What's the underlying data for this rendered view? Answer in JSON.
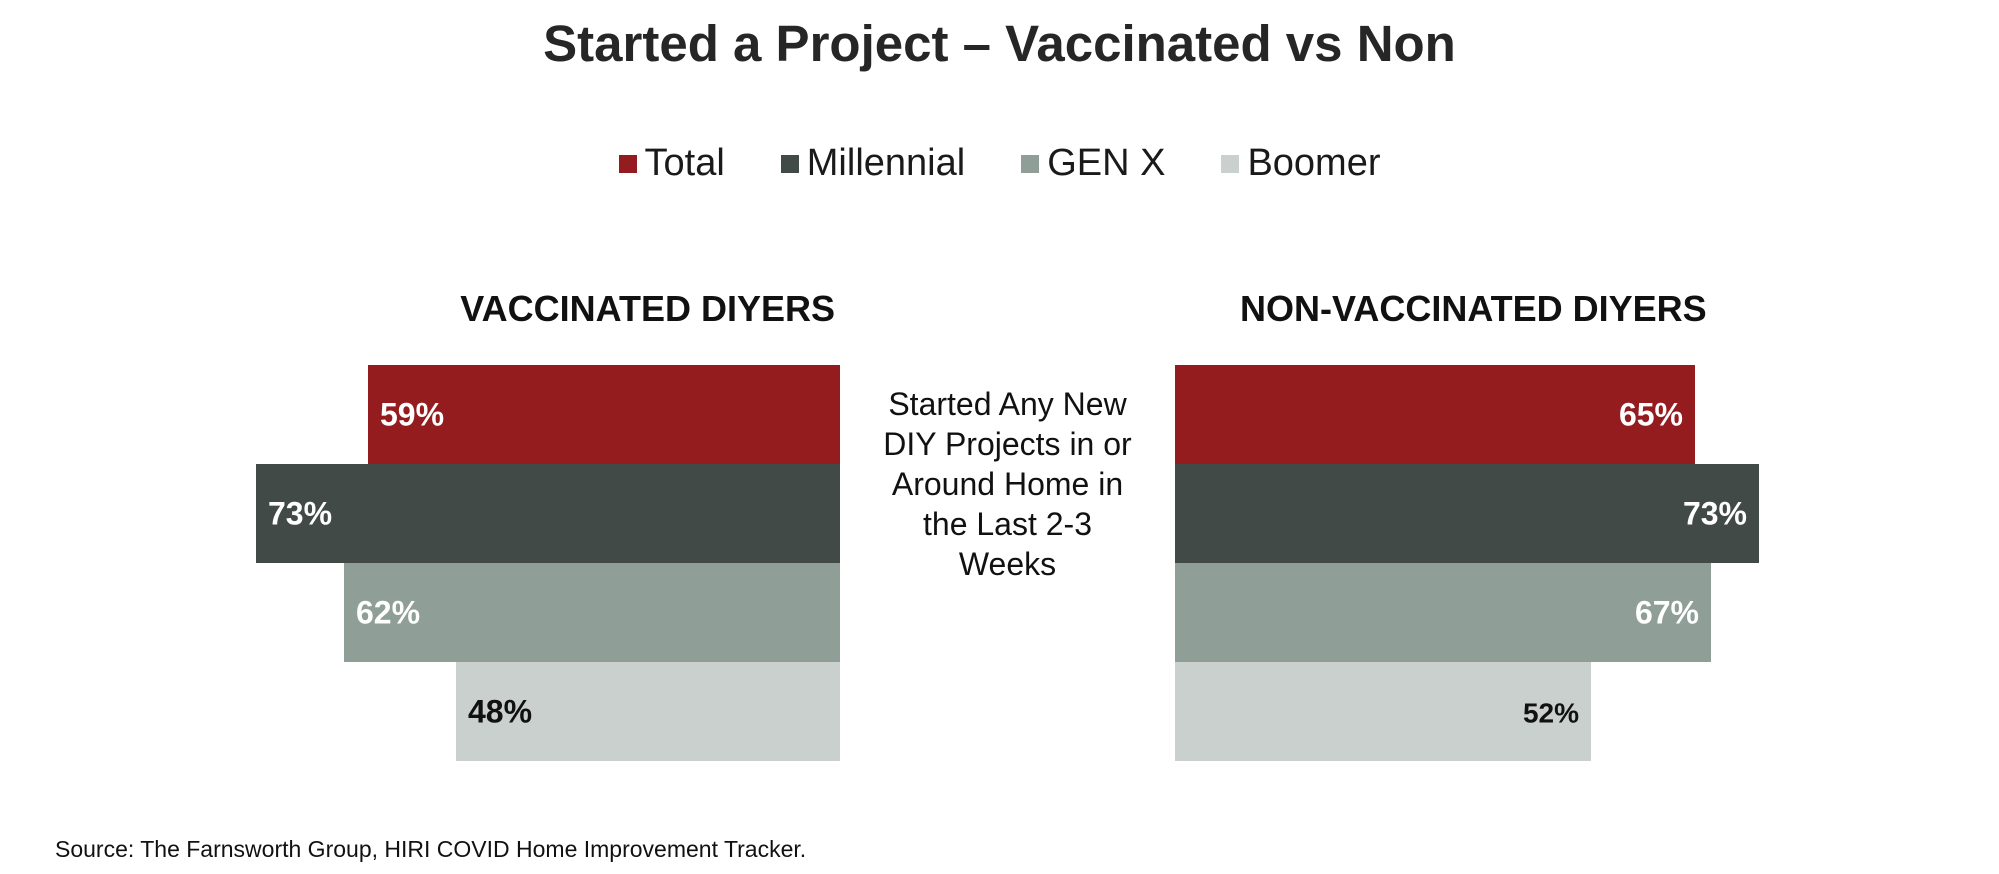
{
  "title": "Started a Project – Vaccinated vs Non",
  "legend": [
    {
      "label": "Total",
      "color": "#941b1e"
    },
    {
      "label": "Millennial",
      "color": "#424a47"
    },
    {
      "label": "GEN X",
      "color": "#909e98"
    },
    {
      "label": "Boomer",
      "color": "#c9d0cd"
    }
  ],
  "center_text": "Started Any New DIY Projects in or Around Home in the Last 2-3 Weeks",
  "source": "Source: The Farnsworth Group, HIRI COVID Home Improvement Tracker.",
  "chart_data": [
    {
      "type": "bar",
      "title": "VACCINATED DIYERS",
      "orientation": "horizontal",
      "direction": "right-to-left",
      "categories": [
        "Total",
        "Millennial",
        "GEN X",
        "Boomer"
      ],
      "values": [
        59,
        73,
        62,
        48
      ],
      "labels": [
        "59%",
        "73%",
        "62%",
        "48%"
      ],
      "colors": [
        "#941b1e",
        "#424a47",
        "#909e98",
        "#c9d0cd"
      ],
      "label_colors": [
        "#ffffff",
        "#ffffff",
        "#ffffff",
        "#111111"
      ]
    },
    {
      "type": "bar",
      "title": "NON-VACCINATED DIYERS",
      "orientation": "horizontal",
      "direction": "left-to-right",
      "categories": [
        "Total",
        "Millennial",
        "GEN X",
        "Boomer"
      ],
      "values": [
        65,
        73,
        67,
        52
      ],
      "labels": [
        "65%",
        "73%",
        "67%",
        "52%"
      ],
      "colors": [
        "#941b1e",
        "#424a47",
        "#909e98",
        "#c9d0cd"
      ],
      "label_colors": [
        "#ffffff",
        "#ffffff",
        "#ffffff",
        "#111111"
      ]
    }
  ]
}
